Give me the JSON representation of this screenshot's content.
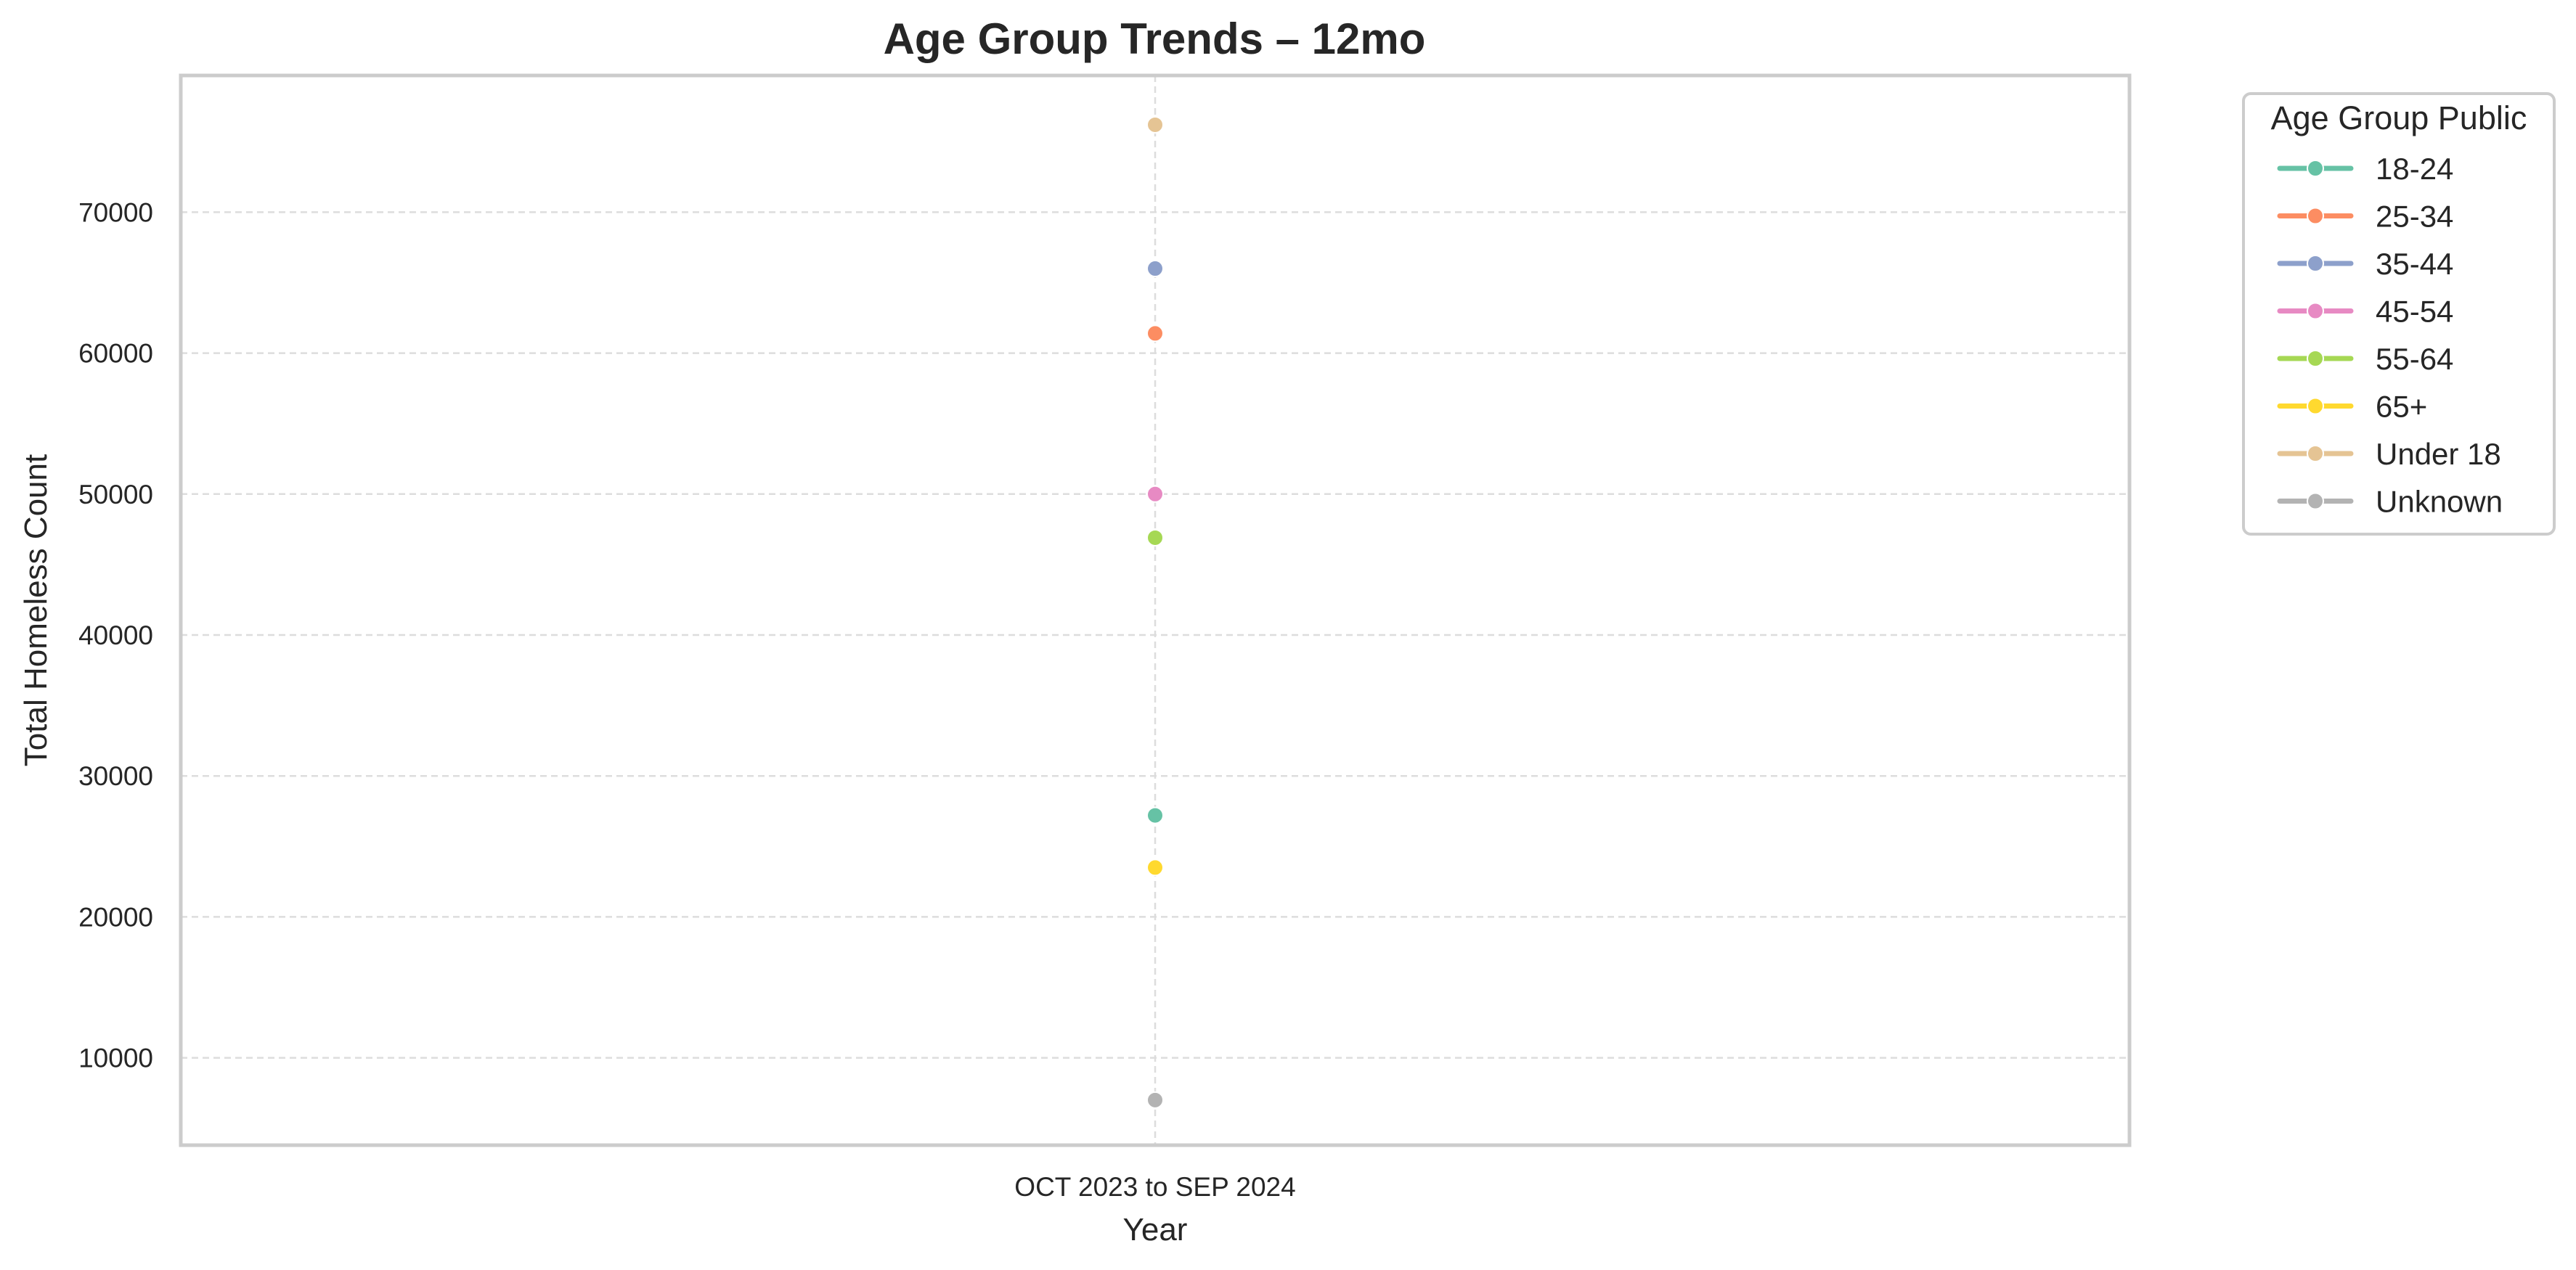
{
  "chart_data": {
    "type": "line",
    "title": "Age Group Trends – 12mo",
    "xlabel": "Year",
    "ylabel": "Total Homeless Count",
    "categories": [
      "OCT 2023 to SEP 2024"
    ],
    "ylim": [
      3800,
      79700
    ],
    "yticks": [
      10000,
      20000,
      30000,
      40000,
      50000,
      60000,
      70000
    ],
    "grid": true,
    "legend": {
      "title": "Age Group Public",
      "placement": "outside-top-right"
    },
    "series": [
      {
        "name": "18-24",
        "color": "#66c2a5",
        "values": [
          27200
        ]
      },
      {
        "name": "25-34",
        "color": "#fc8d62",
        "values": [
          61400
        ]
      },
      {
        "name": "35-44",
        "color": "#8da0cb",
        "values": [
          66000
        ]
      },
      {
        "name": "45-54",
        "color": "#e78ac3",
        "values": [
          50000
        ]
      },
      {
        "name": "55-64",
        "color": "#a6d854",
        "values": [
          46900
        ]
      },
      {
        "name": "65+",
        "color": "#ffd92f",
        "values": [
          23500
        ]
      },
      {
        "name": "Under 18",
        "color": "#e5c494",
        "values": [
          76200
        ]
      },
      {
        "name": "Unknown",
        "color": "#b3b3b3",
        "values": [
          7000
        ]
      }
    ]
  }
}
